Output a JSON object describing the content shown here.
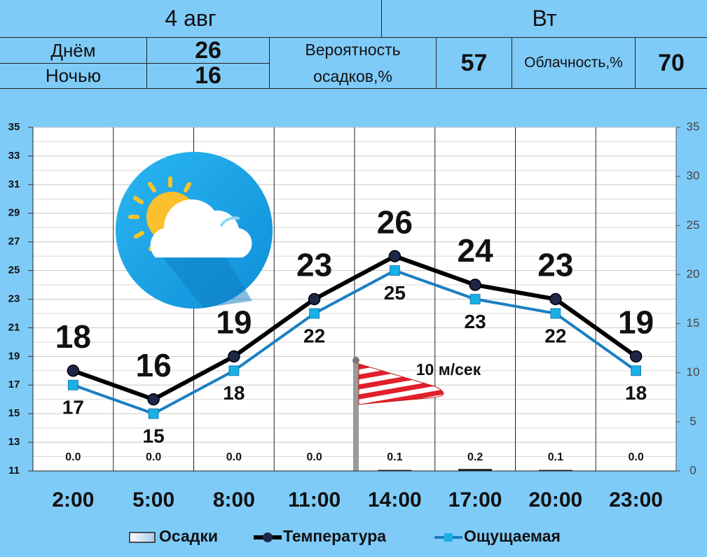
{
  "header": {
    "date": "4 авг",
    "weekday": "Вт",
    "day": {
      "label": "Днём",
      "value": 26
    },
    "night": {
      "label": "Ночью",
      "value": 16
    },
    "precip_prob": {
      "label": "Вероятность осадков,%",
      "value": 57
    },
    "cloudiness": {
      "label": "Облачность,%",
      "value": 70
    }
  },
  "chart_data": {
    "type": "line",
    "categories": [
      "2:00",
      "5:00",
      "8:00",
      "11:00",
      "14:00",
      "17:00",
      "20:00",
      "23:00"
    ],
    "ylim": [
      11,
      35
    ],
    "yticks": [
      11,
      13,
      15,
      17,
      19,
      21,
      23,
      25,
      27,
      29,
      31,
      33,
      35
    ],
    "y2lim": [
      0,
      35
    ],
    "y2ticks": [
      0,
      5,
      10,
      15,
      20,
      25,
      30,
      35
    ],
    "grid": true,
    "series": [
      {
        "name": "Осадки",
        "type": "bar",
        "axis": "y2",
        "color": "#1a1a1a",
        "values": [
          0,
          0,
          0,
          0,
          0.1,
          0.2,
          0.1,
          0
        ],
        "value_labels": [
          "0.0",
          "0.0",
          "0.0",
          "0.0",
          "0.1",
          "0.2",
          "0.1",
          "0.0"
        ]
      },
      {
        "name": "Температура",
        "type": "line",
        "color": "#000000",
        "values": [
          18,
          16,
          19,
          23,
          26,
          24,
          23,
          19
        ]
      },
      {
        "name": "Ощущаемая",
        "type": "line",
        "color": "#1a7fc1",
        "marker_color": "#18b0e6",
        "values": [
          17,
          15,
          18,
          22,
          25,
          23,
          22,
          18
        ]
      }
    ],
    "annotations": [
      {
        "text": "10 м/сек"
      }
    ]
  }
}
